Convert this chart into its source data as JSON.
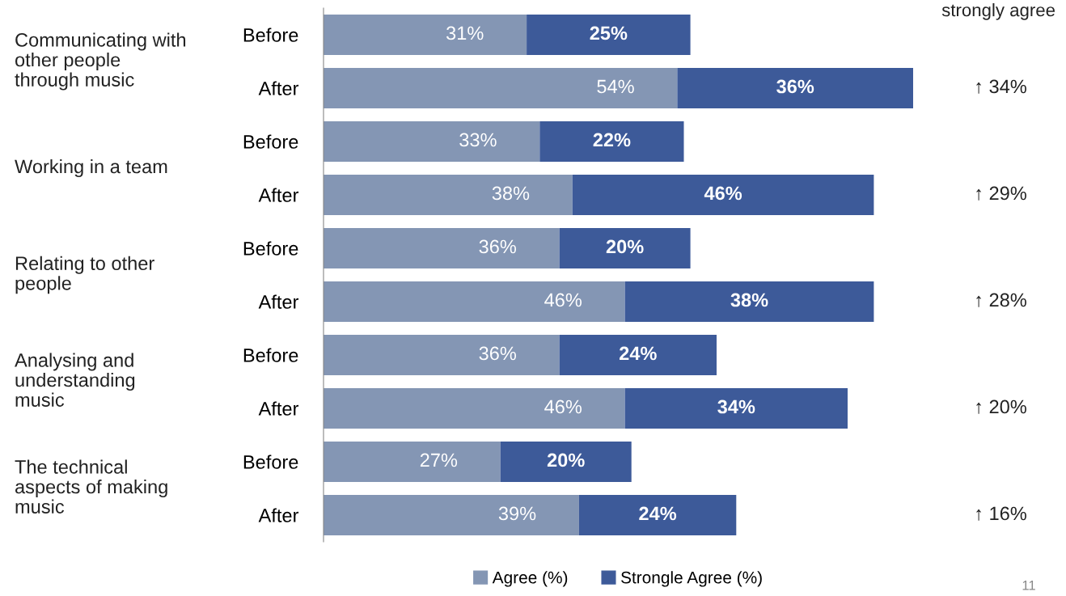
{
  "chart_data": {
    "type": "bar",
    "orientation": "horizontal",
    "stacked": true,
    "tick_labels": "y",
    "grid": false,
    "legend": "bottom",
    "categories": [
      "Before",
      "After",
      "Before",
      "After",
      "Before",
      "After",
      "Before",
      "After",
      "Before",
      "After"
    ],
    "series": [
      {
        "name": "Agree (%)",
        "color": "#8496b4",
        "values": [
          31,
          54,
          33,
          38,
          36,
          46,
          36,
          46,
          27,
          39
        ],
        "value_labels": [
          "31%",
          "54%",
          "33%",
          "38%",
          "36%",
          "46%",
          "36%",
          "46%",
          "27%",
          "39%"
        ]
      },
      {
        "name": "Strongle Agree (%)",
        "color": "#3d5a99",
        "values": [
          25,
          36,
          22,
          46,
          20,
          38,
          24,
          34,
          20,
          24
        ],
        "value_labels": [
          "25%",
          "36%",
          "22%",
          "46%",
          "20%",
          "38%",
          "24%",
          "34%",
          "20%",
          "24%"
        ]
      }
    ],
    "annotations": [
      "Communicating with\nother people\nthrough music",
      "Working in a team",
      "Relating to other\npeople",
      "Analysing and\nunderstanding\nmusic",
      "The technical\naspects of making\nmusic",
      "↑ 34%",
      "↑ 29%",
      "↑ 28%",
      "↑ 20%",
      "↑ 16%",
      "strongly agree",
      "11"
    ]
  }
}
